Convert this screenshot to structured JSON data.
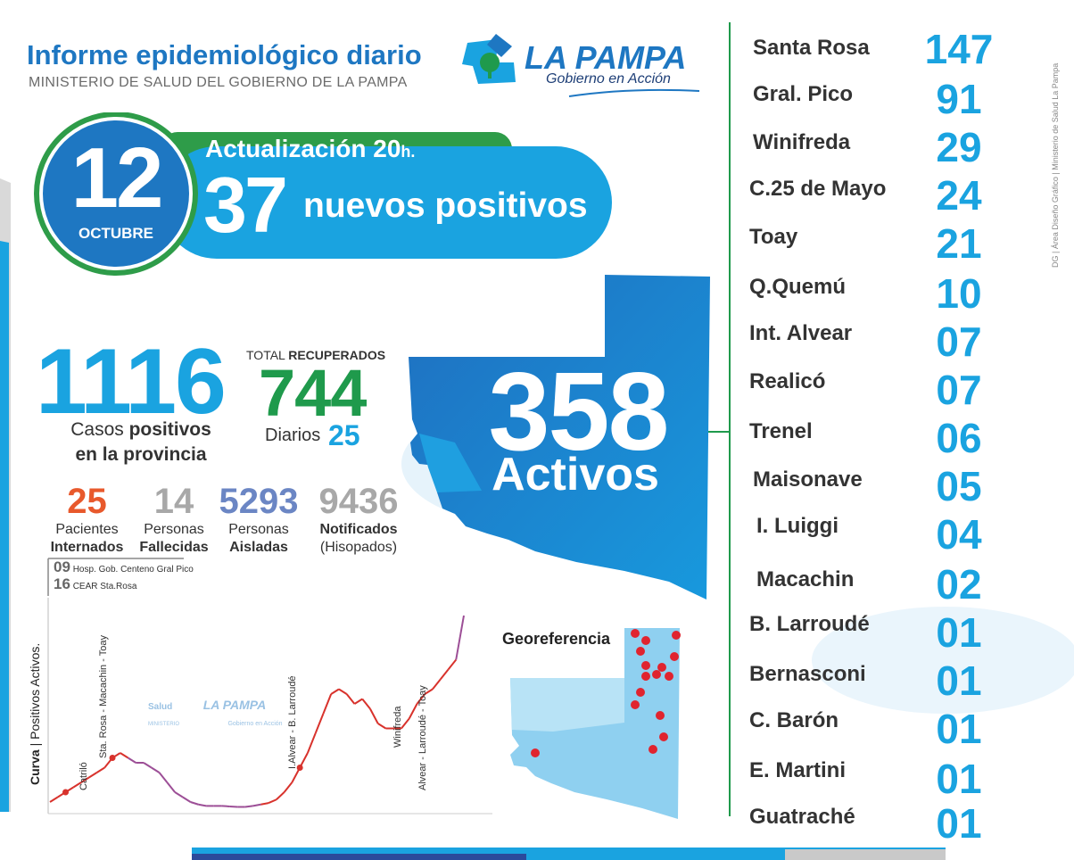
{
  "header": {
    "title": "Informe epidemiológico diario",
    "subtitle": "MINISTERIO DE SALUD DEL GOBIERNO DE LA PAMPA",
    "logo_name": "LA PAMPA",
    "logo_slogan": "Gobierno en Acción"
  },
  "update": {
    "day": "12",
    "month": "OCTUBRE",
    "label": "Actualización 20",
    "label_suffix": "h.",
    "new_count": "37",
    "new_label": "nuevos positivos"
  },
  "totals": {
    "cases": "1116",
    "cases_label_1": "Casos ",
    "cases_label_bold": "positivos",
    "cases_label_2": "en la provincia",
    "recovered_label_1": "TOTAL ",
    "recovered_label_bold": "RECUPERADOS",
    "recovered": "744",
    "daily_label": "Diarios",
    "daily": "25"
  },
  "stats": [
    {
      "value": "25",
      "line1": "Pacientes",
      "line2": "Internados",
      "color": "#e8592c"
    },
    {
      "value": "14",
      "line1": "Personas",
      "line2": "Fallecidas",
      "color": "#a8a8a8"
    },
    {
      "value": "5293",
      "line1": "Personas",
      "line2": "Aisladas",
      "color": "#6b86c4"
    },
    {
      "value": "9436",
      "line1": "Notificados",
      "line2": "(Hisopados)",
      "color": "#a8a8a8"
    }
  ],
  "hospitals": [
    {
      "count": "09",
      "name": "Hosp. Gob. Centeno Gral Pico"
    },
    {
      "count": "16",
      "name": "CEAR Sta.Rosa"
    }
  ],
  "active": {
    "count": "358",
    "label": "Activos"
  },
  "chart": {
    "title_bold": "Curva",
    "title_rest": " | Positivos Activos.",
    "annotations": [
      "Catriló",
      "Sta. Rosa - Macachin - Toay",
      "I.Alvear - B. Larroudé",
      "Winifreda",
      "Alvear -  Larroudé - Toay"
    ],
    "watermark_small": "Salud",
    "watermark_sub": "MINISTERIO",
    "watermark_logo": "LA PAMPA",
    "watermark_slogan": "Gobierno en Acción"
  },
  "chart_data": {
    "type": "line",
    "title": "Curva | Positivos Activos.",
    "series": [
      {
        "values": [
          2,
          3,
          4,
          5,
          6,
          7,
          8,
          9,
          11,
          12,
          11,
          10,
          10,
          9,
          8,
          6,
          4,
          3,
          2,
          1.5,
          1.2,
          1.2,
          1.2,
          1.1,
          1,
          1,
          1.2,
          1.5,
          1.8,
          2.5,
          4,
          6,
          9,
          12,
          16,
          20,
          24,
          25,
          24,
          22,
          23,
          21,
          18,
          17,
          17,
          17,
          19,
          22,
          24,
          25,
          27,
          29,
          31,
          40
        ]
      }
    ]
  },
  "map": {
    "georef_label": "Georeferencia"
  },
  "localities": [
    {
      "name": "Santa Rosa",
      "count": "147"
    },
    {
      "name": "Gral. Pico",
      "count": "91"
    },
    {
      "name": "Winifreda",
      "count": "29"
    },
    {
      "name": "C.25 de Mayo",
      "count": "24"
    },
    {
      "name": "Toay",
      "count": "21"
    },
    {
      "name": "Q.Quemú",
      "count": "10"
    },
    {
      "name": "Int. Alvear",
      "count": "07"
    },
    {
      "name": "Realicó",
      "count": "07"
    },
    {
      "name": "Trenel",
      "count": "06"
    },
    {
      "name": "Maisonave",
      "count": "05"
    },
    {
      "name": "I. Luiggi",
      "count": "04"
    },
    {
      "name": "Macachin",
      "count": "02"
    },
    {
      "name": "B. Larroudé",
      "count": "01"
    },
    {
      "name": "Bernasconi",
      "count": "01"
    },
    {
      "name": "C. Barón",
      "count": "01"
    },
    {
      "name": "E. Martini",
      "count": "01"
    },
    {
      "name": "Guatraché",
      "count": "01"
    }
  ],
  "credit": "DG | Área Diseño Gráfico | Ministerio de Salud La Pampa",
  "colors": {
    "primary_blue": "#1e77c2",
    "light_blue": "#1aa3e0",
    "green": "#1f9a4c",
    "curve_red": "#d8322c",
    "curve_purple": "#9c4e96"
  }
}
